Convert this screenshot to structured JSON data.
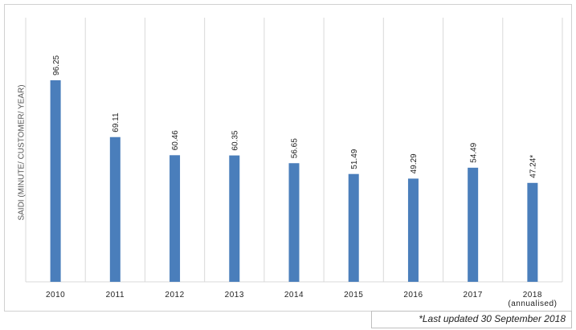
{
  "chart_data": {
    "type": "bar",
    "y_label": "SAIDI (MINUTE/ CUSTOMER/ YEAR)",
    "categories": [
      "2010",
      "2011",
      "2012",
      "2013",
      "2014",
      "2015",
      "2016",
      "2017",
      "2018\n(annualised)"
    ],
    "values": [
      96.25,
      69.11,
      60.46,
      60.35,
      56.65,
      51.49,
      49.29,
      54.49,
      47.24
    ],
    "value_labels": [
      "96.25",
      "69.11",
      "60.46",
      "60.35",
      "56.65",
      "51.49",
      "49.29",
      "54.49",
      "47.24*"
    ],
    "color": "#4a7ebb",
    "ylim": [
      0,
      120
    ],
    "grid": true,
    "footnote": "*Last updated 30 September 2018"
  }
}
